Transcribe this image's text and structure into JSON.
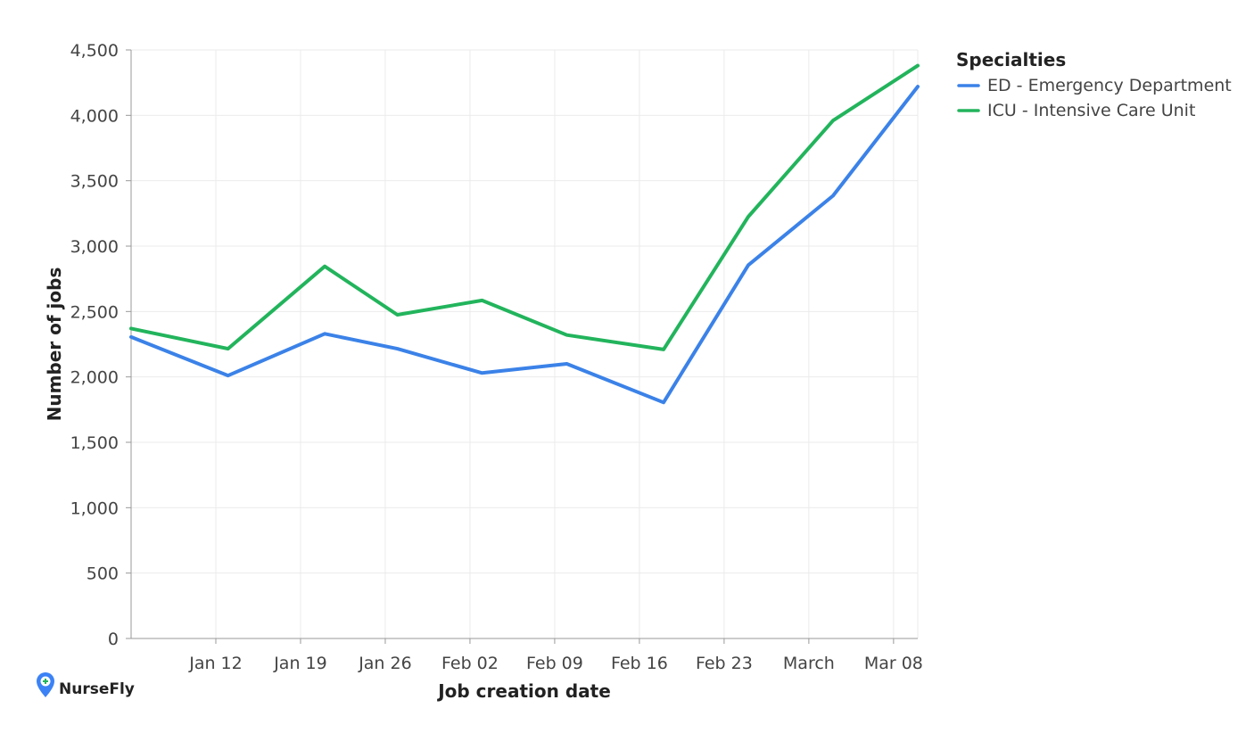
{
  "brand": {
    "name": "NurseFly",
    "icon": "map-pin-plus-icon",
    "color": "#3b82f6"
  },
  "chart_data": {
    "type": "line",
    "xlabel": "Job creation date",
    "ylabel": "Number of jobs",
    "ylim": [
      0,
      4500
    ],
    "y_ticks": [
      "0",
      "500",
      "1,000",
      "1,500",
      "2,000",
      "2,500",
      "3,000",
      "3,500",
      "4,000",
      "4,500"
    ],
    "y_tick_values": [
      0,
      500,
      1000,
      1500,
      2000,
      2500,
      3000,
      3500,
      4000,
      4500
    ],
    "x_ticks": [
      "Jan 12",
      "Jan 19",
      "Jan 26",
      "Feb 02",
      "Feb 09",
      "Feb 16",
      "Feb 23",
      "March",
      "Mar 08"
    ],
    "x_tick_dates": [
      "2020-01-12",
      "2020-01-19",
      "2020-01-26",
      "2020-02-02",
      "2020-02-09",
      "2020-02-16",
      "2020-02-23",
      "2020-03-01",
      "2020-03-08"
    ],
    "xlim": [
      "2020-01-05",
      "2020-03-10"
    ],
    "x": [
      "2020-01-05",
      "2020-01-13",
      "2020-01-21",
      "2020-01-27",
      "2020-02-03",
      "2020-02-10",
      "2020-02-18",
      "2020-02-25",
      "2020-03-03",
      "2020-03-10"
    ],
    "grid": true,
    "legend": {
      "title": "Specialties",
      "position": "top-right"
    },
    "series": [
      {
        "name": "ED - Emergency Department",
        "color": "#3b82e8",
        "values": [
          2305,
          2010,
          2330,
          2215,
          2030,
          2100,
          1805,
          2855,
          3385,
          4220
        ]
      },
      {
        "name": "ICU - Intensive Care Unit",
        "color": "#22b45c",
        "values": [
          2370,
          2215,
          2845,
          2475,
          2585,
          2320,
          2210,
          3225,
          3960,
          4380
        ]
      }
    ]
  }
}
